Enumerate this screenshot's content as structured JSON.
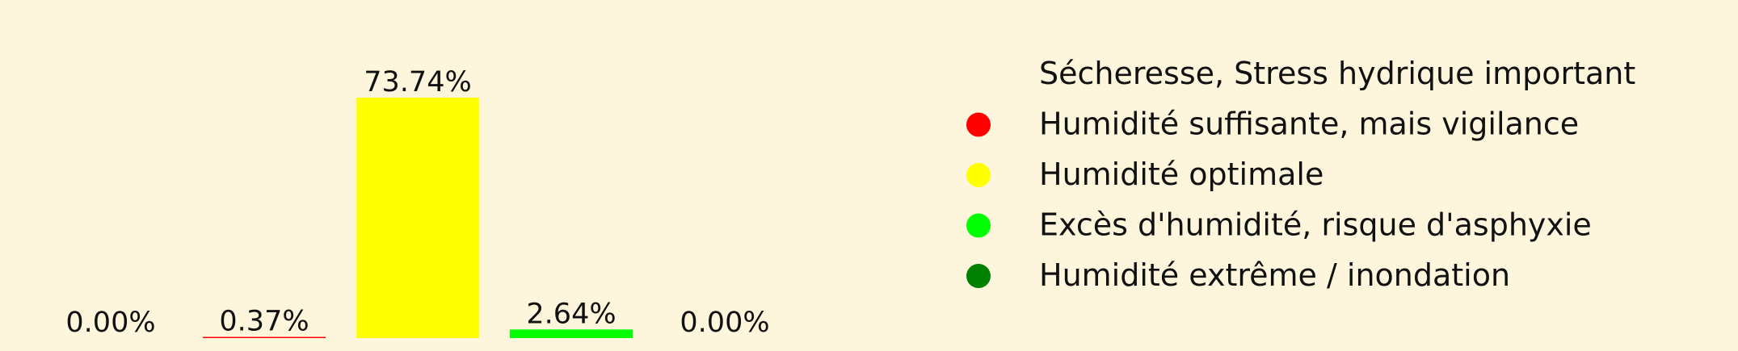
{
  "chart_data": {
    "type": "bar",
    "categories": [
      "Sécheresse, Stress hydrique important",
      "Humidité suffisante, mais vigilance",
      "Humidité optimale",
      "Excès d'humidité, risque d'asphyxie",
      "Humidité extrême / inondation"
    ],
    "values": [
      0.0,
      0.37,
      73.74,
      2.64,
      0.0
    ],
    "value_labels": [
      "0.00%",
      "0.37%",
      "73.74%",
      "2.64%",
      "0.00%"
    ],
    "colors": [
      "#fdf6dc",
      "#ff0000",
      "#ffff00",
      "#00ff00",
      "#008000"
    ],
    "ylim": [
      0,
      73.74
    ],
    "grid": false,
    "legend_position": "right",
    "legend": [
      {
        "label": "Sécheresse, Stress hydrique important",
        "color": "#fdf6dc"
      },
      {
        "label": "Humidité suffisante, mais vigilance",
        "color": "#ff0000"
      },
      {
        "label": "Humidité optimale",
        "color": "#ffff00"
      },
      {
        "label": "Excès d'humidité, risque d'asphyxie",
        "color": "#00ff00"
      },
      {
        "label": "Humidité extrême / inondation",
        "color": "#008000"
      }
    ]
  }
}
